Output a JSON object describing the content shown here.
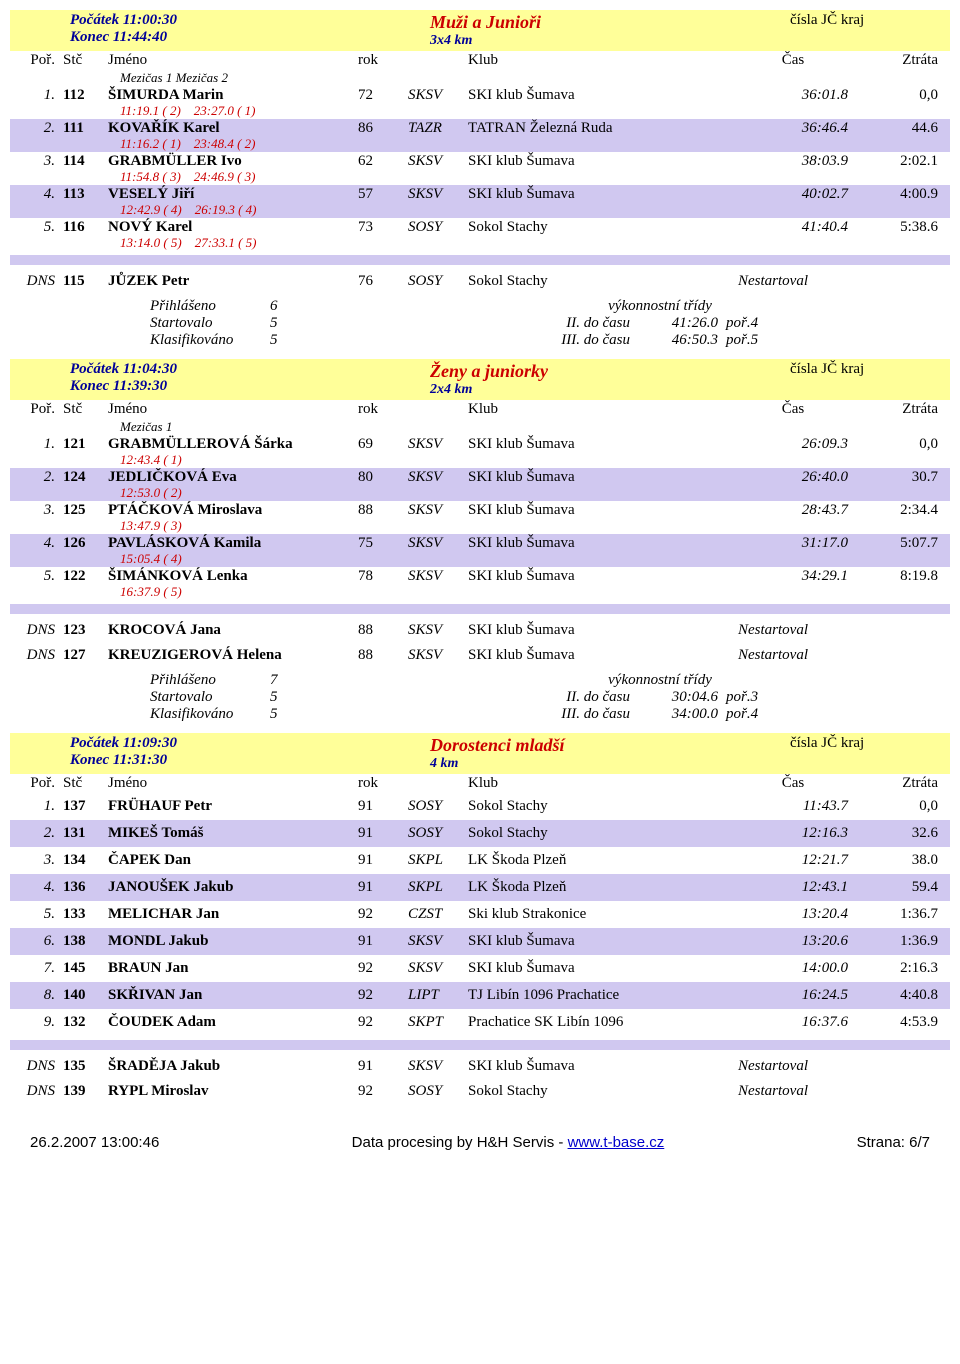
{
  "footer": {
    "timestamp": "26.2.2007 13:00:46",
    "processing": "Data procesing by H&H Servis - ",
    "link": "www.t-base.cz",
    "page": "Strana: 6/7"
  },
  "sections": [
    {
      "start": "Počátek  11:00:30",
      "end": "Konec  11:44:40",
      "title": "Muži a Junioři",
      "dist": "3x4 km",
      "region": "čísla JČ kraj",
      "hdr": {
        "por": "Poř.",
        "stc": "Stč",
        "name": "Jméno",
        "rok": "rok",
        "club": "Klub",
        "cas": "Čas",
        "ztr": "Ztráta"
      },
      "mezicas_hdr": "Mezičas 1      Mezičas 2",
      "rows": [
        {
          "por": "1.",
          "stc": "112",
          "name": "ŠIMURDA Marin",
          "rok": "72",
          "code": "SKSV",
          "club": "SKI klub Šumava",
          "cas": "36:01.8",
          "ztr": "0,0",
          "split": "11:19.1 ( 2)    23:27.0 ( 1)",
          "alt": false
        },
        {
          "por": "2.",
          "stc": "111",
          "name": "KOVAŘÍK Karel",
          "rok": "86",
          "code": "TAZR",
          "club": "TATRAN Železná Ruda",
          "cas": "36:46.4",
          "ztr": "44.6",
          "split": "11:16.2 ( 1)    23:48.4 ( 2)",
          "alt": true
        },
        {
          "por": "3.",
          "stc": "114",
          "name": "GRABMÜLLER Ivo",
          "rok": "62",
          "code": "SKSV",
          "club": "SKI klub Šumava",
          "cas": "38:03.9",
          "ztr": "2:02.1",
          "split": "11:54.8 ( 3)    24:46.9 ( 3)",
          "alt": false
        },
        {
          "por": "4.",
          "stc": "113",
          "name": "VESELÝ Jiří",
          "rok": "57",
          "code": "SKSV",
          "club": "SKI klub Šumava",
          "cas": "40:02.7",
          "ztr": "4:00.9",
          "split": "12:42.9 ( 4)    26:19.3 ( 4)",
          "alt": true
        },
        {
          "por": "5.",
          "stc": "116",
          "name": "NOVÝ Karel",
          "rok": "73",
          "code": "SOSY",
          "club": "Sokol Stachy",
          "cas": "41:40.4",
          "ztr": "5:38.6",
          "split": "13:14.0 ( 5)    27:33.1 ( 5)",
          "alt": false
        }
      ],
      "dns": [
        {
          "por": "DNS",
          "stc": "115",
          "name": "JŮZEK Petr",
          "rok": "76",
          "code": "SOSY",
          "club": "Sokol Stachy",
          "cas": "Nestartoval"
        }
      ],
      "stats": {
        "left": [
          [
            "Přihlášeno",
            "6"
          ],
          [
            "Startovalo",
            "5"
          ],
          [
            "Klasifikováno",
            "5"
          ]
        ],
        "title": "výkonnostní třídy",
        "right": [
          [
            "II. do času",
            "41:26.0",
            "poř.4"
          ],
          [
            "III. do času",
            "46:50.3",
            "poř.5"
          ]
        ]
      }
    },
    {
      "start": "Počátek  11:04:30",
      "end": "Konec  11:39:30",
      "title": "Ženy a juniorky",
      "dist": "2x4 km",
      "region": "čísla JČ kraj",
      "hdr": {
        "por": "Poř.",
        "stc": "Stč",
        "name": "Jméno",
        "rok": "rok",
        "club": "Klub",
        "cas": "Čas",
        "ztr": "Ztráta"
      },
      "mezicas_hdr": "Mezičas 1",
      "rows": [
        {
          "por": "1.",
          "stc": "121",
          "name": "GRABMÜLLEROVÁ Šárka",
          "rok": "69",
          "code": "SKSV",
          "club": "SKI klub Šumava",
          "cas": "26:09.3",
          "ztr": "0,0",
          "split": "12:43.4 ( 1)",
          "alt": false
        },
        {
          "por": "2.",
          "stc": "124",
          "name": "JEDLIČKOVÁ Eva",
          "rok": "80",
          "code": "SKSV",
          "club": "SKI klub Šumava",
          "cas": "26:40.0",
          "ztr": "30.7",
          "split": "12:53.0 ( 2)",
          "alt": true
        },
        {
          "por": "3.",
          "stc": "125",
          "name": "PTÁČKOVÁ Miroslava",
          "rok": "88",
          "code": "SKSV",
          "club": "SKI klub Šumava",
          "cas": "28:43.7",
          "ztr": "2:34.4",
          "split": "13:47.9 ( 3)",
          "alt": false
        },
        {
          "por": "4.",
          "stc": "126",
          "name": "PAVLÁSKOVÁ Kamila",
          "rok": "75",
          "code": "SKSV",
          "club": "SKI klub Šumava",
          "cas": "31:17.0",
          "ztr": "5:07.7",
          "split": "15:05.4 ( 4)",
          "alt": true
        },
        {
          "por": "5.",
          "stc": "122",
          "name": "ŠIMÁNKOVÁ Lenka",
          "rok": "78",
          "code": "SKSV",
          "club": "SKI klub Šumava",
          "cas": "34:29.1",
          "ztr": "8:19.8",
          "split": "16:37.9 ( 5)",
          "alt": false
        }
      ],
      "dns": [
        {
          "por": "DNS",
          "stc": "123",
          "name": "KROCOVÁ Jana",
          "rok": "88",
          "code": "SKSV",
          "club": "SKI klub Šumava",
          "cas": "Nestartoval"
        },
        {
          "por": "DNS",
          "stc": "127",
          "name": "KREUZIGEROVÁ Helena",
          "rok": "88",
          "code": "SKSV",
          "club": "SKI klub Šumava",
          "cas": "Nestartoval"
        }
      ],
      "stats": {
        "left": [
          [
            "Přihlášeno",
            "7"
          ],
          [
            "Startovalo",
            "5"
          ],
          [
            "Klasifikováno",
            "5"
          ]
        ],
        "title": "výkonnostní třídy",
        "right": [
          [
            "II. do času",
            "30:04.6",
            "poř.3"
          ],
          [
            "III. do času",
            "34:00.0",
            "poř.4"
          ]
        ]
      }
    },
    {
      "start": "Počátek  11:09:30",
      "end": "Konec  11:31:30",
      "title": "Dorostenci mladší",
      "dist": "4 km",
      "region": "čísla JČ kraj",
      "hdr": {
        "por": "Poř.",
        "stc": "Stč",
        "name": "Jméno",
        "rok": "rok",
        "club": "Klub",
        "cas": "Čas",
        "ztr": "Ztráta"
      },
      "simple": true,
      "rows": [
        {
          "por": "1.",
          "stc": "137",
          "name": "FRÜHAUF Petr",
          "rok": "91",
          "code": "SOSY",
          "club": "Sokol Stachy",
          "cas": "11:43.7",
          "ztr": "0,0",
          "alt": false
        },
        {
          "por": "2.",
          "stc": "131",
          "name": "MIKEŠ Tomáš",
          "rok": "91",
          "code": "SOSY",
          "club": "Sokol Stachy",
          "cas": "12:16.3",
          "ztr": "32.6",
          "alt": true
        },
        {
          "por": "3.",
          "stc": "134",
          "name": "ČAPEK Dan",
          "rok": "91",
          "code": "SKPL",
          "club": "LK Škoda Plzeň",
          "cas": "12:21.7",
          "ztr": "38.0",
          "alt": false
        },
        {
          "por": "4.",
          "stc": "136",
          "name": "JANOUŠEK Jakub",
          "rok": "91",
          "code": "SKPL",
          "club": "LK Škoda Plzeň",
          "cas": "12:43.1",
          "ztr": "59.4",
          "alt": true
        },
        {
          "por": "5.",
          "stc": "133",
          "name": "MELICHAR Jan",
          "rok": "92",
          "code": "CZST",
          "club": "Ski klub Strakonice",
          "cas": "13:20.4",
          "ztr": "1:36.7",
          "alt": false
        },
        {
          "por": "6.",
          "stc": "138",
          "name": "MONDL Jakub",
          "rok": "91",
          "code": "SKSV",
          "club": "SKI klub Šumava",
          "cas": "13:20.6",
          "ztr": "1:36.9",
          "alt": true
        },
        {
          "por": "7.",
          "stc": "145",
          "name": "BRAUN Jan",
          "rok": "92",
          "code": "SKSV",
          "club": "SKI klub Šumava",
          "cas": "14:00.0",
          "ztr": "2:16.3",
          "alt": false
        },
        {
          "por": "8.",
          "stc": "140",
          "name": "SKŘIVAN Jan",
          "rok": "92",
          "code": "LIPT",
          "club": "TJ Libín 1096 Prachatice",
          "cas": "16:24.5",
          "ztr": "4:40.8",
          "alt": true
        },
        {
          "por": "9.",
          "stc": "132",
          "name": "ČOUDEK Adam",
          "rok": "92",
          "code": "SKPT",
          "club": "Prachatice SK Libín 1096",
          "cas": "16:37.6",
          "ztr": "4:53.9",
          "alt": false
        }
      ],
      "dns": [
        {
          "por": "DNS",
          "stc": "135",
          "name": "ŠRADĚJA Jakub",
          "rok": "91",
          "code": "SKSV",
          "club": "SKI klub Šumava",
          "cas": "Nestartoval"
        },
        {
          "por": "DNS",
          "stc": "139",
          "name": "RYPL Miroslav",
          "rok": "92",
          "code": "SOSY",
          "club": "Sokol Stachy",
          "cas": "Nestartoval"
        }
      ]
    }
  ]
}
